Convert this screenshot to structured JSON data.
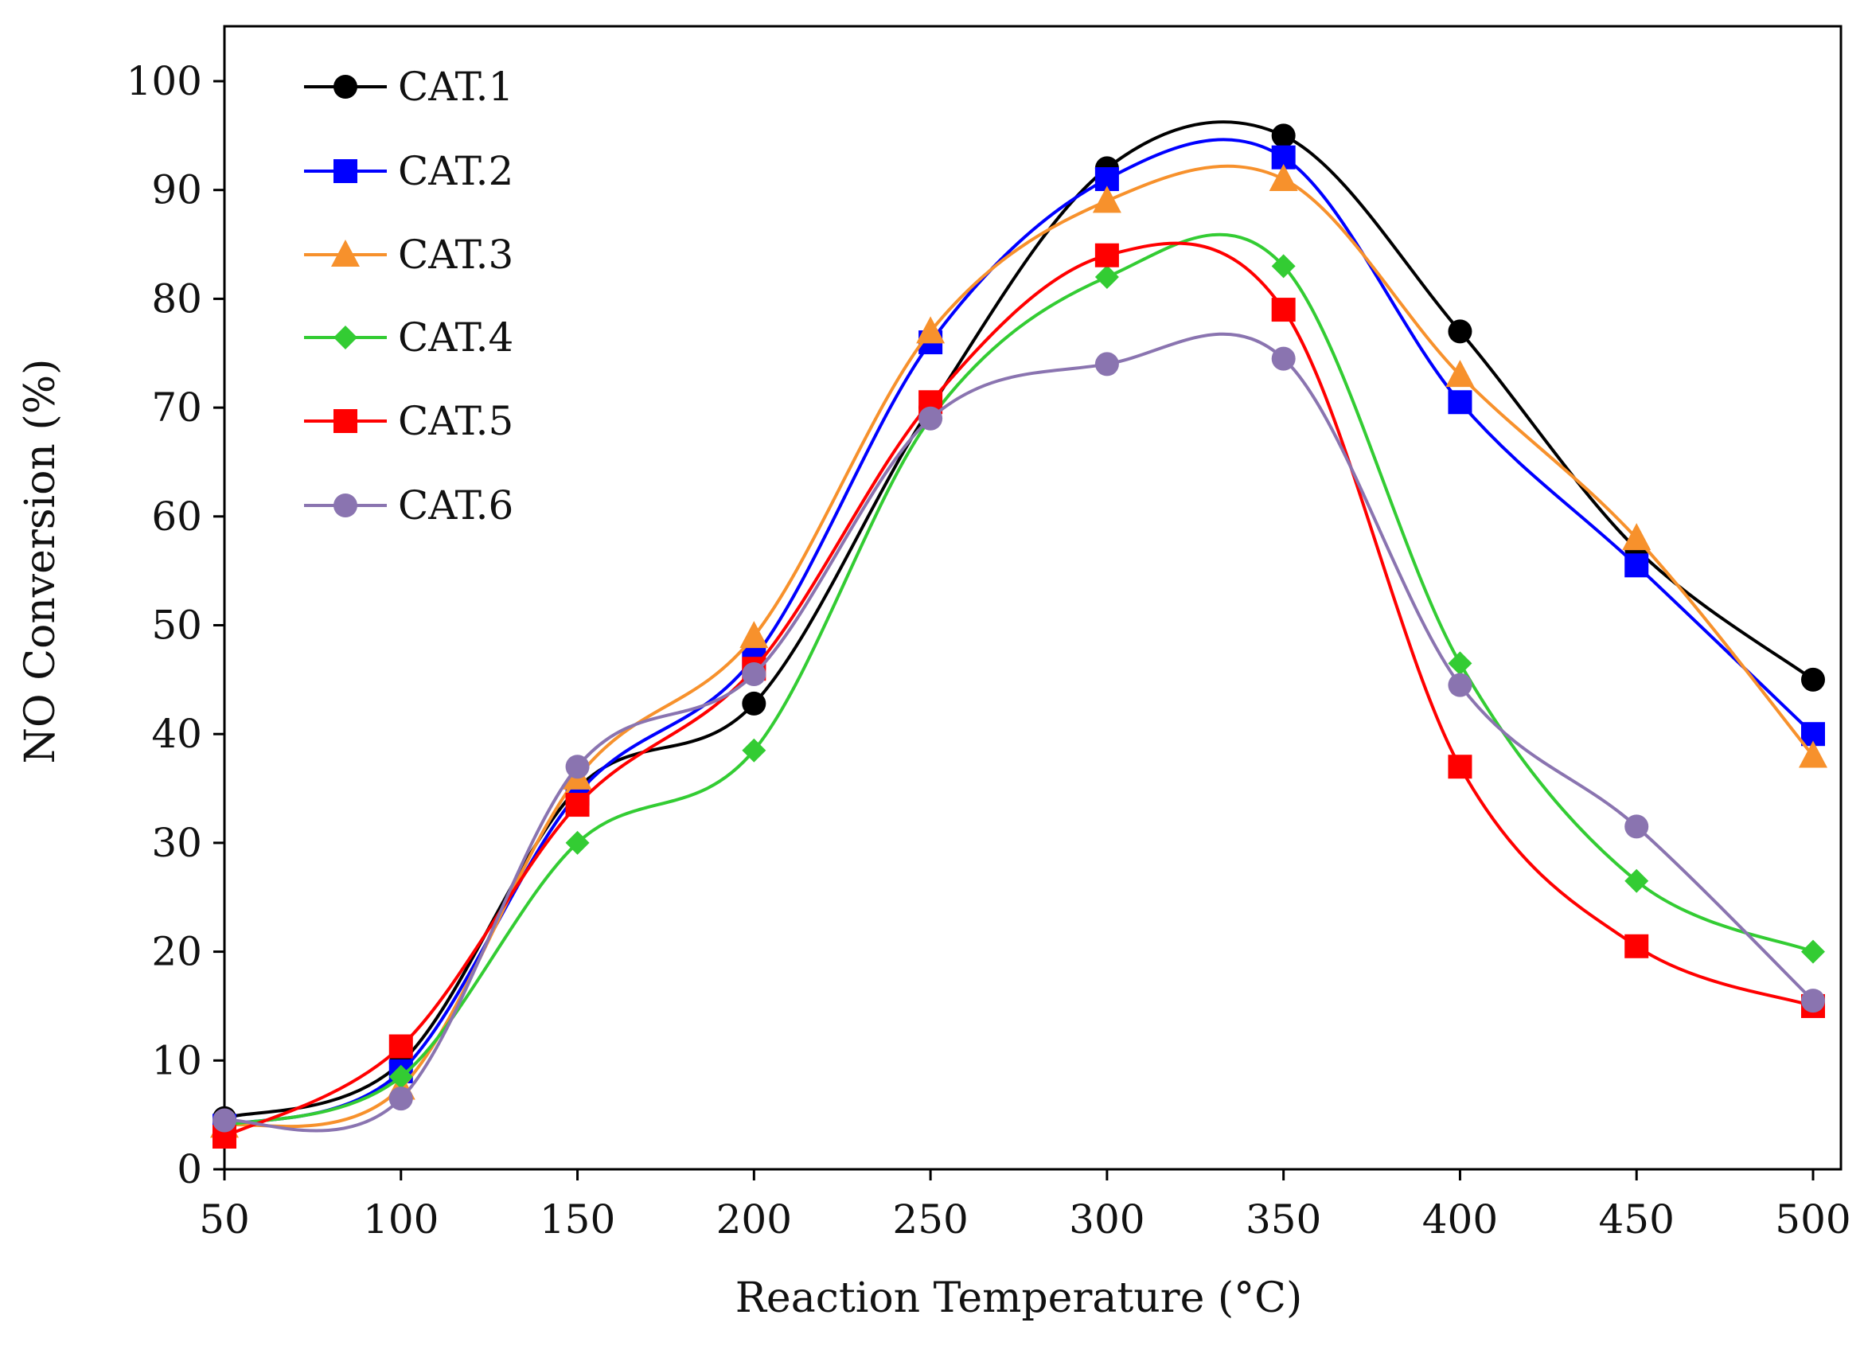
{
  "chart_data": {
    "type": "line",
    "title": "",
    "xlabel": "Reaction Temperature (°C)",
    "ylabel": "NO Conversion (%)",
    "xlim": [
      50,
      500
    ],
    "ylim": [
      0,
      100
    ],
    "x": [
      50,
      100,
      150,
      200,
      250,
      300,
      350,
      400,
      450,
      500
    ],
    "xticks": [
      "50",
      "100",
      "150",
      "200",
      "250",
      "300",
      "350",
      "400",
      "450",
      "500"
    ],
    "yticks": [
      "0",
      "10",
      "20",
      "30",
      "40",
      "50",
      "60",
      "70",
      "80",
      "90",
      "100"
    ],
    "grid": false,
    "legend_position": "top-left",
    "smoothed": true,
    "series": [
      {
        "name": "CAT.1",
        "color": "#000000",
        "marker": "circle",
        "values": [
          4.7,
          9.8,
          35,
          42.8,
          70,
          92,
          95,
          77,
          57,
          45
        ]
      },
      {
        "name": "CAT.2",
        "color": "#0000ff",
        "marker": "square",
        "values": [
          4,
          9,
          34.5,
          47,
          76,
          91,
          93,
          70.5,
          55.5,
          40
        ]
      },
      {
        "name": "CAT.3",
        "color": "#f7912c",
        "marker": "triangle",
        "values": [
          4,
          7.5,
          36,
          49,
          77,
          89,
          91,
          73,
          58,
          38
        ]
      },
      {
        "name": "CAT.4",
        "color": "#33cc33",
        "marker": "diamond",
        "values": [
          4,
          8.5,
          30,
          38.5,
          69,
          82,
          83,
          46.5,
          26.5,
          20
        ]
      },
      {
        "name": "CAT.5",
        "color": "#ff0000",
        "marker": "square",
        "values": [
          3,
          11.3,
          33.5,
          46,
          70.5,
          84,
          79,
          37,
          20.5,
          15
        ]
      },
      {
        "name": "CAT.6",
        "color": "#8a74b0",
        "marker": "circle",
        "values": [
          4.5,
          6.5,
          37,
          45.5,
          69,
          74,
          74.5,
          44.5,
          31.5,
          15.5
        ]
      }
    ]
  }
}
